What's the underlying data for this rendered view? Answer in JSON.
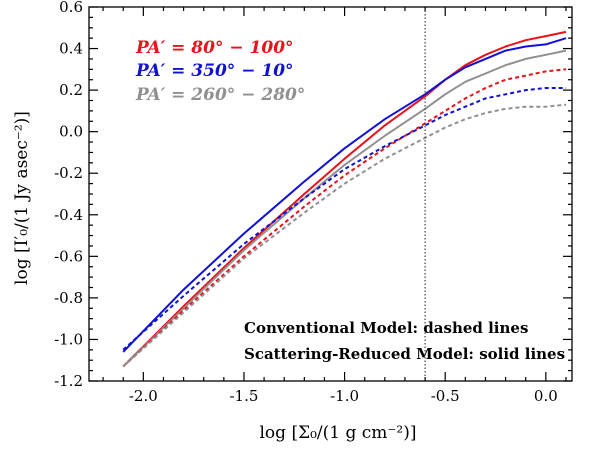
{
  "chart_data": {
    "type": "line",
    "title": "",
    "xlabel": "log [Σ₀/(1 g cm⁻²)]",
    "ylabel": "log [I′₀/(1 Jy asec⁻²)]",
    "xlim": [
      -2.27,
      0.13
    ],
    "ylim": [
      -1.2,
      0.6
    ],
    "x_ticks": [
      -2.0,
      -1.5,
      -1.0,
      -0.5,
      0.0
    ],
    "x_tick_labels": [
      "-2.0",
      "-1.5",
      "-1.0",
      "-0.5",
      "0.0"
    ],
    "y_ticks": [
      -1.2,
      -1.0,
      -0.8,
      -0.6,
      -0.4,
      -0.2,
      0.0,
      0.2,
      0.4,
      0.6
    ],
    "y_tick_labels": [
      "-1.2",
      "-1.0",
      "-0.8",
      "-0.6",
      "-0.4",
      "-0.2",
      "0.0",
      "0.2",
      "0.4",
      "0.6"
    ],
    "vline_x": -0.6,
    "grid": false,
    "legend_position": "top-left",
    "legend": [
      {
        "label": "PA′ = 80° − 100°",
        "color": "#e8121a"
      },
      {
        "label": "PA′ = 350° − 10°",
        "color": "#1010d8"
      },
      {
        "label": "PA′ = 260° − 280°",
        "color": "#909090"
      }
    ],
    "annotations": [
      "Conventional Model: dashed lines",
      "Scattering-Reduced Model: solid lines"
    ],
    "series": [
      {
        "color": "#e8121a",
        "style": "solid",
        "x": [
          -2.1,
          -1.8,
          -1.5,
          -1.2,
          -1.0,
          -0.8,
          -0.6,
          -0.5,
          -0.4,
          -0.3,
          -0.2,
          -0.1,
          0.0,
          0.1
        ],
        "y": [
          -1.13,
          -0.84,
          -0.56,
          -0.3,
          -0.13,
          0.03,
          0.17,
          0.25,
          0.32,
          0.37,
          0.41,
          0.44,
          0.46,
          0.48
        ]
      },
      {
        "color": "#1010d8",
        "style": "solid",
        "x": [
          -2.1,
          -1.8,
          -1.5,
          -1.2,
          -1.0,
          -0.8,
          -0.6,
          -0.5,
          -0.4,
          -0.3,
          -0.2,
          -0.1,
          0.0,
          0.1
        ],
        "y": [
          -1.06,
          -0.76,
          -0.49,
          -0.24,
          -0.08,
          0.06,
          0.18,
          0.25,
          0.31,
          0.35,
          0.39,
          0.41,
          0.42,
          0.45
        ]
      },
      {
        "color": "#909090",
        "style": "solid",
        "x": [
          -2.1,
          -1.8,
          -1.5,
          -1.2,
          -1.0,
          -0.8,
          -0.6,
          -0.5,
          -0.4,
          -0.3,
          -0.2,
          -0.1,
          0.0,
          0.1
        ],
        "y": [
          -1.13,
          -0.85,
          -0.57,
          -0.32,
          -0.16,
          -0.02,
          0.11,
          0.18,
          0.24,
          0.28,
          0.32,
          0.35,
          0.37,
          0.39
        ]
      },
      {
        "color": "#e8121a",
        "style": "dashed",
        "x": [
          -2.1,
          -1.8,
          -1.5,
          -1.2,
          -1.0,
          -0.8,
          -0.6,
          -0.5,
          -0.4,
          -0.3,
          -0.2,
          -0.1,
          0.0,
          0.1
        ],
        "y": [
          -1.13,
          -0.86,
          -0.6,
          -0.36,
          -0.21,
          -0.08,
          0.04,
          0.1,
          0.16,
          0.21,
          0.25,
          0.27,
          0.29,
          0.3
        ]
      },
      {
        "color": "#1010d8",
        "style": "dashed",
        "x": [
          -2.1,
          -1.8,
          -1.5,
          -1.2,
          -1.0,
          -0.8,
          -0.6,
          -0.5,
          -0.4,
          -0.3,
          -0.2,
          -0.1,
          0.0,
          0.1
        ],
        "y": [
          -1.05,
          -0.79,
          -0.54,
          -0.32,
          -0.18,
          -0.07,
          0.03,
          0.08,
          0.12,
          0.16,
          0.18,
          0.2,
          0.21,
          0.21
        ]
      },
      {
        "color": "#909090",
        "style": "dashed",
        "x": [
          -2.1,
          -1.8,
          -1.5,
          -1.2,
          -1.0,
          -0.8,
          -0.6,
          -0.5,
          -0.4,
          -0.3,
          -0.2,
          -0.1,
          0.0,
          0.1
        ],
        "y": [
          -1.13,
          -0.87,
          -0.61,
          -0.39,
          -0.25,
          -0.13,
          -0.03,
          0.02,
          0.06,
          0.09,
          0.11,
          0.12,
          0.12,
          0.13
        ]
      }
    ]
  }
}
